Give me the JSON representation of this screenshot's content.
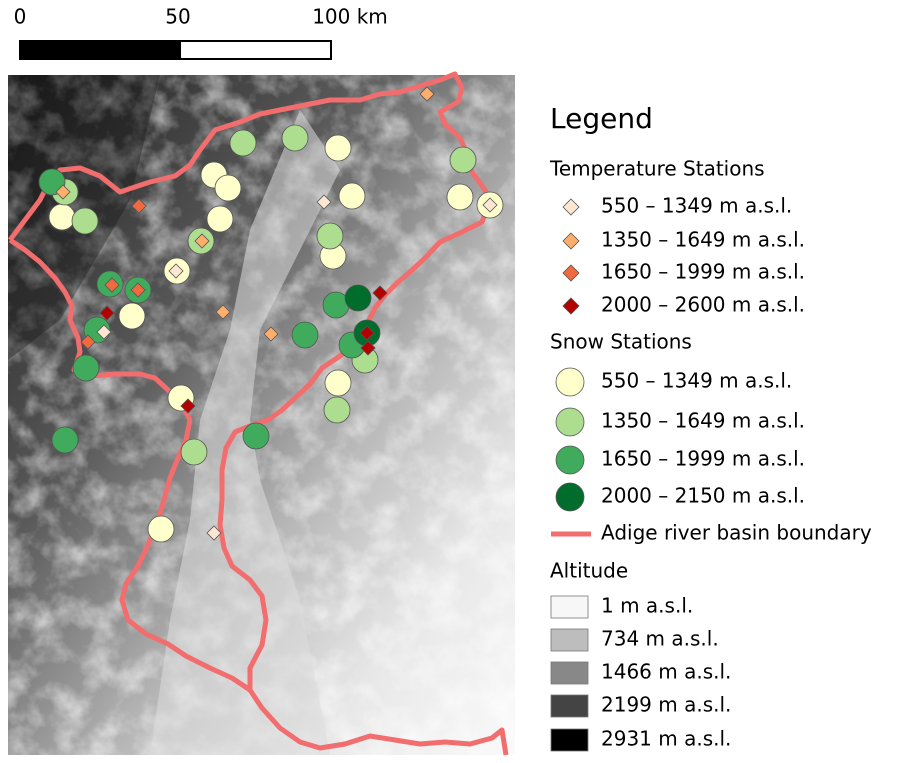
{
  "scale_bar": {
    "labels": [
      "0",
      "50",
      "100 km"
    ]
  },
  "legend": {
    "title": "Legend",
    "groups": [
      {
        "title": "Temperature Stations",
        "items": [
          {
            "label": "550 – 1349 m a.s.l."
          },
          {
            "label": "1350 – 1649 m a.s.l."
          },
          {
            "label": "1650 – 1999 m a.s.l."
          },
          {
            "label": "2000 – 2600 m a.s.l."
          }
        ]
      },
      {
        "title": "Snow Stations",
        "items": [
          {
            "label": "550 – 1349 m a.s.l."
          },
          {
            "label": "1350 – 1649 m a.s.l."
          },
          {
            "label": "1650 – 1999 m a.s.l."
          },
          {
            "label": "2000 – 2150 m a.s.l."
          },
          {
            "label": "Adige river basin boundary"
          }
        ]
      },
      {
        "title": "Altitude",
        "items": [
          {
            "label": "1 m a.s.l."
          },
          {
            "label": "734 m a.s.l."
          },
          {
            "label": "1466 m a.s.l."
          },
          {
            "label": "2199 m a.s.l."
          },
          {
            "label": "2931 m a.s.l."
          }
        ]
      }
    ]
  }
}
